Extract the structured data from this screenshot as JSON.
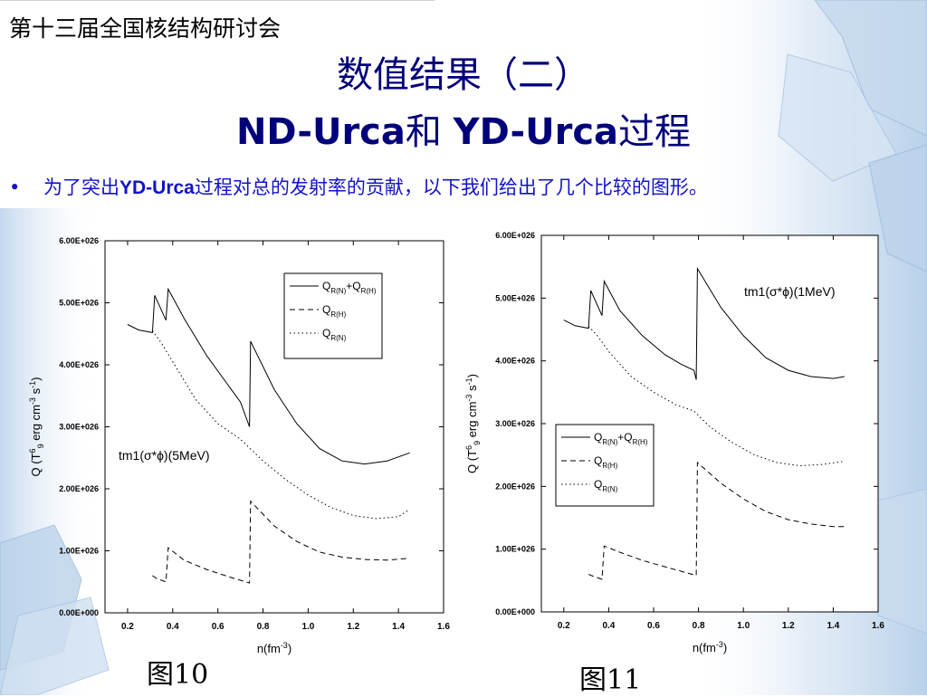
{
  "header": {
    "conference": "第十三届全国核结构研讨会",
    "title_line1": "数值结果（二）",
    "title_line2_a": "ND-Urca",
    "title_line2_b": "和 ",
    "title_line2_c": "YD-Urca",
    "title_line2_d": "过程"
  },
  "bullet": {
    "symbol": "•",
    "text_a": "为了突出",
    "text_kw": "YD-Urca",
    "text_b": "过程对总的发射率的贡献，以下我们给出了几个比较的图形。"
  },
  "captions": {
    "fig10": "图10",
    "fig11": "图11"
  },
  "colors": {
    "title": "#00007a",
    "bullet": "#1313c8",
    "background_accent": "#c9dcef"
  },
  "chart_data": [
    {
      "type": "line",
      "xlabel": "n(fm-3)",
      "ylabel": "Q (T96 erg cm-3 s-1)",
      "xlim": [
        0.1,
        1.6
      ],
      "ylim": [
        0,
        6e+26
      ],
      "xticks": [
        "0.2",
        "0.4",
        "0.6",
        "0.8",
        "1.0",
        "1.2",
        "1.4",
        "1.6"
      ],
      "yticks": [
        "0.00E+000",
        "1.00E+026",
        "2.00E+026",
        "3.00E+026",
        "4.00E+026",
        "5.00E+026",
        "6.00E+026"
      ],
      "annotation": "tm1(σ*ϕ)(5MeV)",
      "legend_position": "top-right",
      "series": [
        {
          "name": "QR(N)+QR(H)",
          "style": "solid",
          "points": [
            [
              0.2,
              4.65e+26
            ],
            [
              0.25,
              4.56e+26
            ],
            [
              0.31,
              4.52e+26
            ],
            [
              0.32,
              5.12e+26
            ],
            [
              0.37,
              4.72e+26
            ],
            [
              0.38,
              5.22e+26
            ],
            [
              0.45,
              4.75e+26
            ],
            [
              0.55,
              4.15e+26
            ],
            [
              0.65,
              3.65e+26
            ],
            [
              0.7,
              3.4e+26
            ],
            [
              0.74,
              3e+26
            ],
            [
              0.745,
              4.38e+26
            ],
            [
              0.85,
              3.6e+26
            ],
            [
              0.95,
              3.05e+26
            ],
            [
              1.05,
              2.65e+26
            ],
            [
              1.15,
              2.45e+26
            ],
            [
              1.25,
              2.4e+26
            ],
            [
              1.35,
              2.45e+26
            ],
            [
              1.45,
              2.58e+26
            ]
          ]
        },
        {
          "name": "QR(H)",
          "style": "dashed",
          "points": [
            [
              0.31,
              6e+25
            ],
            [
              0.33,
              5.5e+25
            ],
            [
              0.37,
              5e+25
            ],
            [
              0.38,
              1.05e+26
            ],
            [
              0.45,
              8.5e+25
            ],
            [
              0.55,
              7e+25
            ],
            [
              0.65,
              5.8e+25
            ],
            [
              0.74,
              4.8e+25
            ],
            [
              0.745,
              1.8e+26
            ],
            [
              0.85,
              1.4e+26
            ],
            [
              0.95,
              1.15e+26
            ],
            [
              1.05,
              9.8e+25
            ],
            [
              1.15,
              9e+25
            ],
            [
              1.25,
              8.6e+25
            ],
            [
              1.35,
              8.5e+25
            ],
            [
              1.45,
              8.8e+25
            ]
          ]
        },
        {
          "name": "QR(N)",
          "style": "dotted",
          "points": [
            [
              0.31,
              4.55e+26
            ],
            [
              0.35,
              4.35e+26
            ],
            [
              0.4,
              4.05e+26
            ],
            [
              0.5,
              3.45e+26
            ],
            [
              0.6,
              3.05e+26
            ],
            [
              0.7,
              2.8e+26
            ],
            [
              0.8,
              2.45e+26
            ],
            [
              0.9,
              2.15e+26
            ],
            [
              1.0,
              1.9e+26
            ],
            [
              1.1,
              1.7e+26
            ],
            [
              1.2,
              1.57e+26
            ],
            [
              1.3,
              1.52e+26
            ],
            [
              1.4,
              1.55e+26
            ],
            [
              1.45,
              1.67e+26
            ]
          ]
        }
      ]
    },
    {
      "type": "line",
      "xlabel": "n(fm-3)",
      "ylabel": "Q (T96 erg cm-3 s-1)",
      "xlim": [
        0.1,
        1.6
      ],
      "ylim": [
        0,
        6e+26
      ],
      "xticks": [
        "0.2",
        "0.4",
        "0.6",
        "0.8",
        "1.0",
        "1.2",
        "1.4",
        "1.6"
      ],
      "yticks": [
        "0.00E+000",
        "1.00E+026",
        "2.00E+026",
        "3.00E+026",
        "4.00E+026",
        "5.00E+026",
        "6.00E+026"
      ],
      "annotation": "tm1(σ*ϕ)(1MeV)",
      "legend_position": "center-right",
      "series": [
        {
          "name": "QR(N)+QR(H)",
          "style": "solid",
          "points": [
            [
              0.2,
              4.65e+26
            ],
            [
              0.25,
              4.56e+26
            ],
            [
              0.31,
              4.52e+26
            ],
            [
              0.32,
              5.12e+26
            ],
            [
              0.37,
              4.72e+26
            ],
            [
              0.38,
              5.27e+26
            ],
            [
              0.45,
              4.8e+26
            ],
            [
              0.55,
              4.4e+26
            ],
            [
              0.65,
              4.1e+26
            ],
            [
              0.72,
              3.95e+26
            ],
            [
              0.78,
              3.85e+26
            ],
            [
              0.79,
              3.7e+26
            ],
            [
              0.795,
              5.47e+26
            ],
            [
              0.9,
              4.85e+26
            ],
            [
              1.0,
              4.4e+26
            ],
            [
              1.1,
              4.05e+26
            ],
            [
              1.2,
              3.85e+26
            ],
            [
              1.3,
              3.75e+26
            ],
            [
              1.4,
              3.72e+26
            ],
            [
              1.45,
              3.75e+26
            ]
          ]
        },
        {
          "name": "QR(H)",
          "style": "dashed",
          "points": [
            [
              0.31,
              6e+25
            ],
            [
              0.33,
              5.7e+25
            ],
            [
              0.37,
              5.2e+25
            ],
            [
              0.38,
              1.05e+26
            ],
            [
              0.45,
              9.5e+25
            ],
            [
              0.55,
              8.2e+25
            ],
            [
              0.65,
              7.2e+25
            ],
            [
              0.79,
              5.8e+25
            ],
            [
              0.795,
              2.38e+26
            ],
            [
              0.9,
              2.05e+26
            ],
            [
              1.0,
              1.8e+26
            ],
            [
              1.1,
              1.6e+26
            ],
            [
              1.2,
              1.47e+26
            ],
            [
              1.3,
              1.4e+26
            ],
            [
              1.4,
              1.36e+26
            ],
            [
              1.45,
              1.36e+26
            ]
          ]
        },
        {
          "name": "QR(N)",
          "style": "dotted",
          "points": [
            [
              0.31,
              4.55e+26
            ],
            [
              0.35,
              4.4e+26
            ],
            [
              0.4,
              4.15e+26
            ],
            [
              0.5,
              3.75e+26
            ],
            [
              0.6,
              3.5e+26
            ],
            [
              0.7,
              3.3e+26
            ],
            [
              0.78,
              3.2e+26
            ],
            [
              0.85,
              2.95e+26
            ],
            [
              0.95,
              2.7e+26
            ],
            [
              1.05,
              2.5e+26
            ],
            [
              1.15,
              2.38e+26
            ],
            [
              1.25,
              2.33e+26
            ],
            [
              1.35,
              2.35e+26
            ],
            [
              1.45,
              2.4e+26
            ]
          ]
        }
      ]
    }
  ]
}
